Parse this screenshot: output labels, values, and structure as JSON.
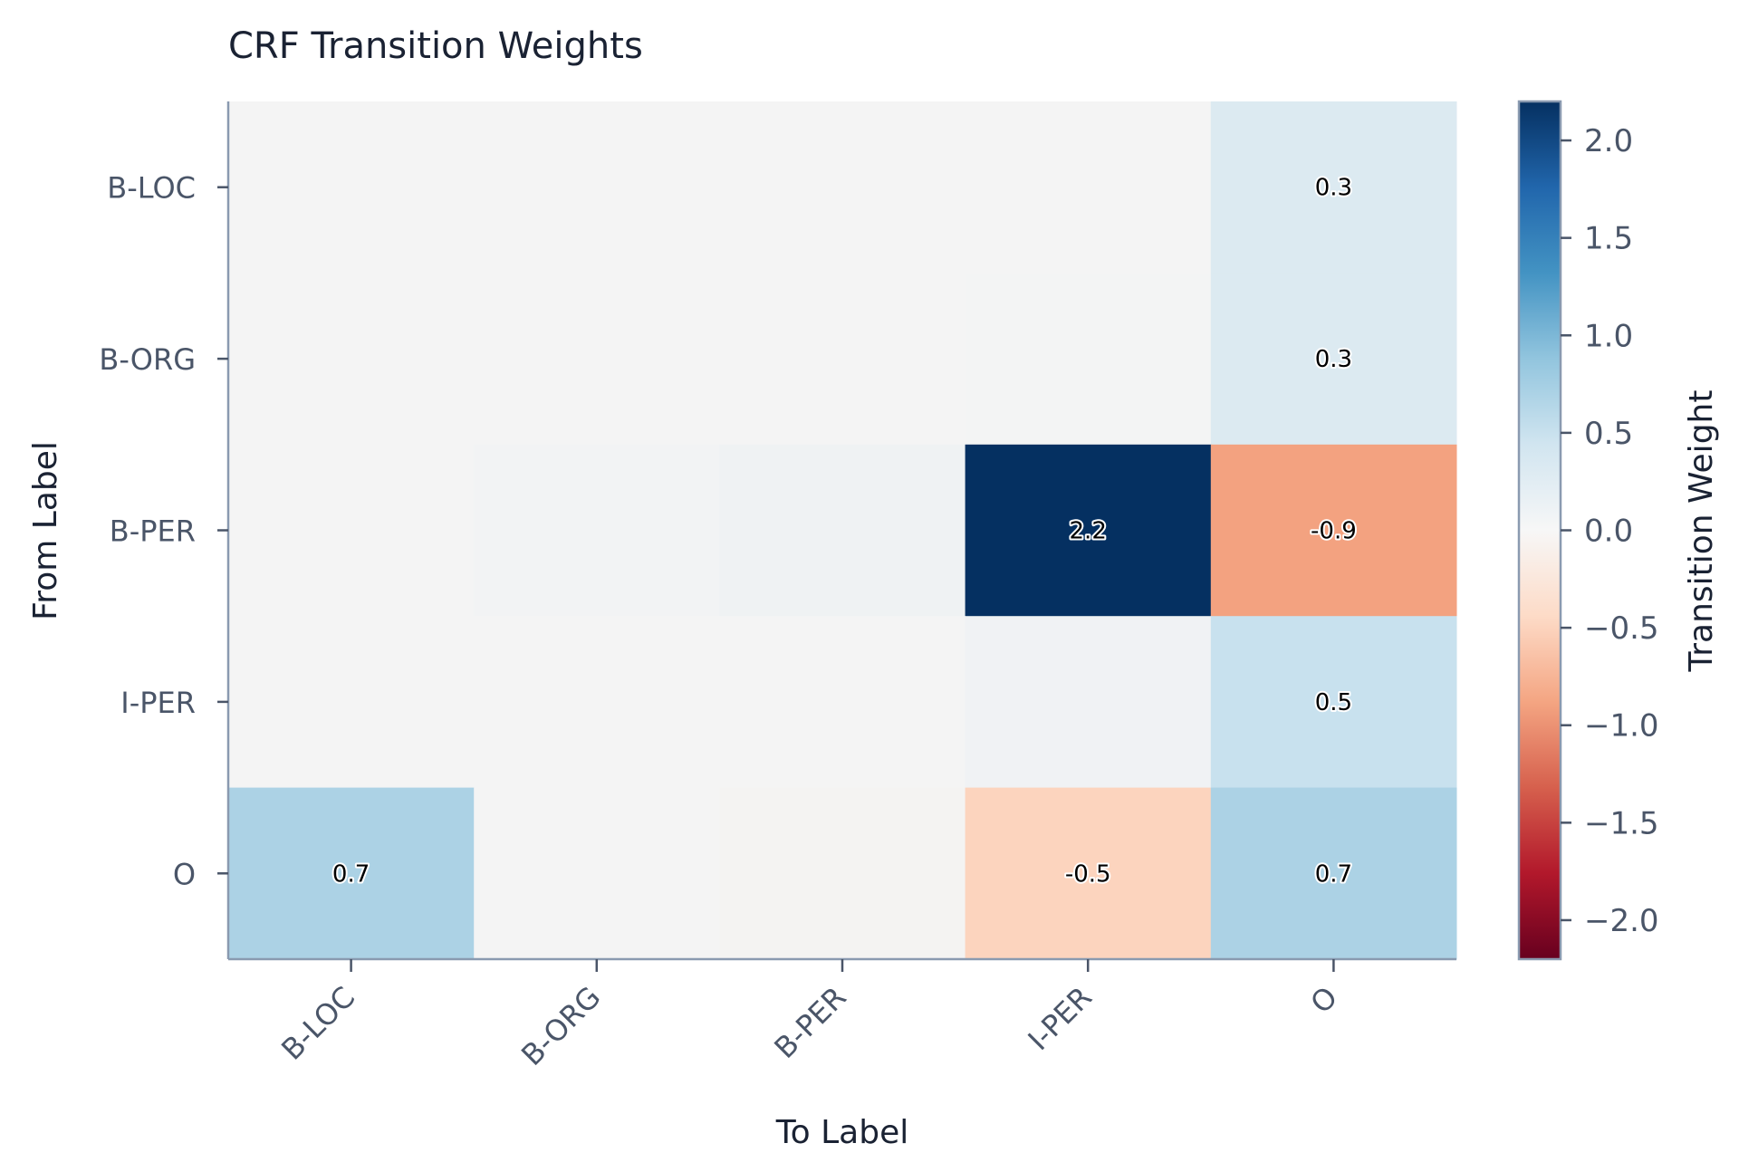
{
  "chart_data": {
    "type": "heatmap",
    "title": "CRF Transition Weights",
    "xlabel": "To Label",
    "ylabel": "From Label",
    "x_categories": [
      "B-LOC",
      "B-ORG",
      "B-PER",
      "I-PER",
      "O"
    ],
    "y_categories": [
      "B-LOC",
      "B-ORG",
      "B-PER",
      "I-PER",
      "O"
    ],
    "values": [
      [
        0.0,
        0.0,
        0.0,
        0.0,
        0.3
      ],
      [
        0.0,
        0.0,
        0.0,
        0.01,
        0.3
      ],
      [
        0.0,
        0.03,
        0.06,
        2.2,
        -0.9
      ],
      [
        0.0,
        0.0,
        0.0,
        0.05,
        0.5
      ],
      [
        0.7,
        0.0,
        -0.02,
        -0.5,
        0.7
      ]
    ],
    "annotations": [
      {
        "row": 0,
        "col": 4,
        "text": "0.3"
      },
      {
        "row": 1,
        "col": 4,
        "text": "0.3"
      },
      {
        "row": 2,
        "col": 3,
        "text": "2.2"
      },
      {
        "row": 2,
        "col": 4,
        "text": "-0.9"
      },
      {
        "row": 3,
        "col": 4,
        "text": "0.5"
      },
      {
        "row": 4,
        "col": 0,
        "text": "0.7"
      },
      {
        "row": 4,
        "col": 3,
        "text": "-0.5"
      },
      {
        "row": 4,
        "col": 4,
        "text": "0.7"
      }
    ],
    "colormap": "RdBu",
    "vmin": -2.2,
    "vmax": 2.2,
    "colorbar": {
      "label": "Transition Weight",
      "ticks": [
        2.0,
        1.5,
        1.0,
        0.5,
        0.0,
        -0.5,
        -1.0,
        -1.5,
        -2.0
      ],
      "tick_labels": [
        "2.0",
        "1.5",
        "1.0",
        "0.5",
        "0.0",
        "−0.5",
        "−1.0",
        "−1.5",
        "−2.0"
      ]
    },
    "colors": {
      "background": "#ffffff",
      "zero": "#f4f4f4",
      "axis": "#8a9ab0"
    }
  }
}
